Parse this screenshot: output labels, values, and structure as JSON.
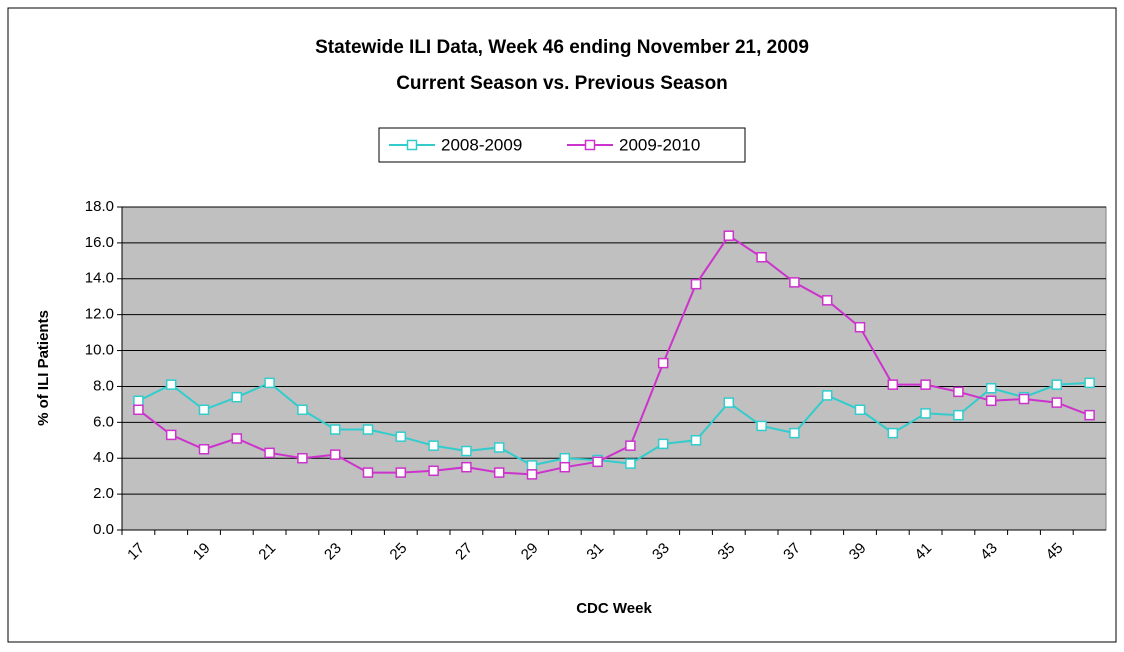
{
  "chart_data": {
    "type": "line",
    "title": "Statewide ILI Data, Week 46 ending November 21, 2009",
    "subtitle": "Current Season vs. Previous Season",
    "x_label": "CDC Week",
    "y_label": "% of ILI Patients",
    "categories": [
      "17",
      null,
      "19",
      null,
      "21",
      null,
      "23",
      null,
      "25",
      null,
      "27",
      null,
      "29",
      null,
      "31",
      null,
      "33",
      null,
      "35",
      null,
      "37",
      null,
      "39",
      null,
      "41",
      null,
      "43",
      null,
      "45",
      null
    ],
    "series": [
      {
        "name": "2008-2009",
        "color": "#33cccc",
        "values": [
          7.2,
          8.1,
          6.7,
          7.4,
          8.2,
          6.7,
          5.6,
          5.6,
          5.2,
          4.7,
          4.4,
          4.6,
          3.6,
          4.0,
          3.9,
          3.7,
          4.8,
          5.0,
          7.1,
          5.8,
          5.4,
          7.5,
          6.7,
          5.4,
          6.5,
          6.4,
          7.9,
          7.4,
          8.1,
          8.2
        ]
      },
      {
        "name": "2009-2010",
        "color": "#cc33cc",
        "values": [
          6.7,
          5.3,
          4.5,
          5.1,
          4.3,
          4.0,
          4.2,
          3.2,
          3.2,
          3.3,
          3.5,
          3.2,
          3.1,
          3.5,
          3.8,
          4.7,
          9.3,
          13.7,
          16.4,
          15.2,
          13.8,
          12.8,
          11.3,
          8.1,
          8.1,
          7.7,
          7.2,
          7.3,
          7.1,
          6.4
        ]
      }
    ],
    "ylim": [
      0,
      18
    ],
    "yticks": [
      {
        "value": 0,
        "label": "0.0"
      },
      {
        "value": 2,
        "label": "2.0"
      },
      {
        "value": 4,
        "label": "4.0"
      },
      {
        "value": 6,
        "label": "6.0"
      },
      {
        "value": 8,
        "label": "8.0"
      },
      {
        "value": 10,
        "label": "10.0"
      },
      {
        "value": 12,
        "label": "12.0"
      },
      {
        "value": 14,
        "label": "14.0"
      },
      {
        "value": 16,
        "label": "16.0"
      },
      {
        "value": 18,
        "label": "18.0"
      }
    ],
    "grid": true,
    "plot_background": "#c0c0c0",
    "legend": "top"
  }
}
